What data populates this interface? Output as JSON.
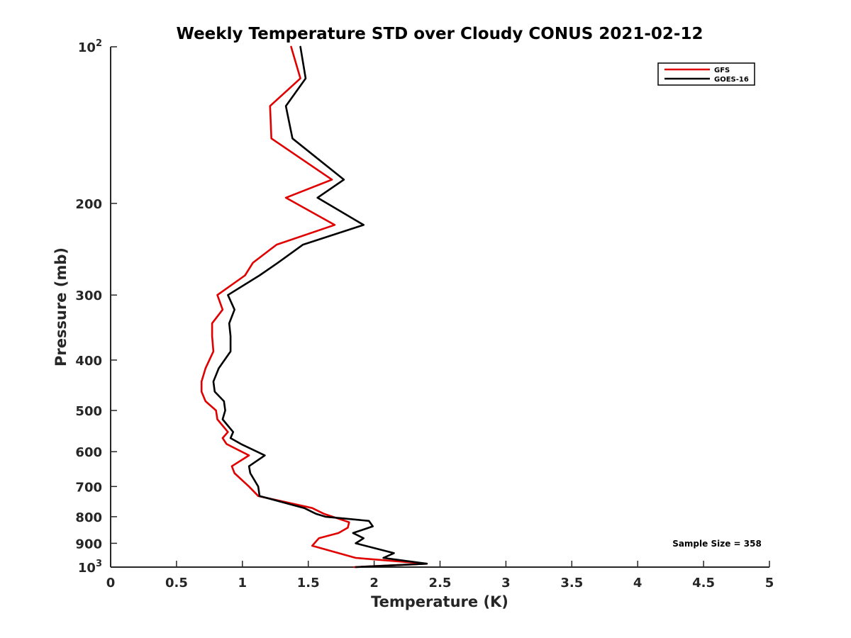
{
  "chart_data": {
    "type": "line",
    "title": "Weekly Temperature STD over Cloudy CONUS 2021-02-12",
    "xlabel": "Temperature (K)",
    "ylabel": "Pressure (mb)",
    "xlim": [
      0,
      5
    ],
    "ylim": [
      100,
      1000
    ],
    "y_scale": "log",
    "y_reversed": true,
    "grid": false,
    "legend_position": "top-right",
    "x_ticks": [
      0,
      0.5,
      1,
      1.5,
      2,
      2.5,
      3,
      3.5,
      4,
      4.5,
      5
    ],
    "x_tick_labels": [
      "0",
      "0.5",
      "1",
      "1.5",
      "2",
      "2.5",
      "3",
      "3.5",
      "4",
      "4.5",
      "5"
    ],
    "y_ticks": [
      100,
      200,
      300,
      400,
      500,
      600,
      700,
      800,
      900,
      1000
    ],
    "y_tick_labels": [
      {
        "base": "10",
        "sup": "2"
      },
      {
        "base": "200",
        "sup": ""
      },
      {
        "base": "300",
        "sup": ""
      },
      {
        "base": "400",
        "sup": ""
      },
      {
        "base": "500",
        "sup": ""
      },
      {
        "base": "600",
        "sup": ""
      },
      {
        "base": "700",
        "sup": ""
      },
      {
        "base": "800",
        "sup": ""
      },
      {
        "base": "900",
        "sup": ""
      },
      {
        "base": "10",
        "sup": "3"
      }
    ],
    "annotation": "Sample Size = 358",
    "series": [
      {
        "name": "GFS",
        "color": "#e00000",
        "x": [
          1.37,
          1.44,
          1.21,
          1.22,
          1.68,
          1.33,
          1.7,
          1.26,
          1.08,
          1.02,
          0.81,
          0.85,
          0.77,
          0.77,
          0.78,
          0.72,
          0.69,
          0.69,
          0.72,
          0.8,
          0.81,
          0.89,
          0.85,
          0.88,
          1.05,
          0.92,
          0.94,
          1.05,
          1.12,
          1.53,
          1.62,
          1.81,
          1.8,
          1.73,
          1.58,
          1.53,
          1.86,
          2.4,
          1.85
        ],
        "y": [
          100,
          115,
          130,
          150,
          180,
          195,
          220,
          240,
          260,
          275,
          300,
          320,
          340,
          360,
          385,
          415,
          440,
          460,
          480,
          500,
          520,
          550,
          565,
          580,
          610,
          640,
          660,
          700,
          730,
          770,
          790,
          820,
          840,
          860,
          880,
          910,
          960,
          985,
          1000
        ]
      },
      {
        "name": "GOES-16",
        "color": "#000000",
        "x": [
          1.44,
          1.48,
          1.33,
          1.38,
          1.77,
          1.57,
          1.92,
          1.46,
          1.27,
          1.13,
          0.89,
          0.94,
          0.9,
          0.91,
          0.91,
          0.82,
          0.78,
          0.79,
          0.86,
          0.87,
          0.85,
          0.93,
          0.91,
          0.99,
          1.17,
          1.05,
          1.06,
          1.12,
          1.13,
          1.47,
          1.56,
          1.63,
          1.96,
          1.99,
          1.84,
          1.92,
          1.86,
          2.15,
          2.07,
          2.4,
          1.86
        ],
        "y": [
          100,
          115,
          130,
          150,
          180,
          195,
          220,
          240,
          260,
          275,
          300,
          320,
          340,
          360,
          385,
          415,
          440,
          460,
          480,
          500,
          520,
          550,
          565,
          580,
          610,
          640,
          660,
          700,
          730,
          770,
          790,
          800,
          815,
          835,
          860,
          880,
          900,
          940,
          960,
          985,
          1000
        ]
      }
    ]
  }
}
